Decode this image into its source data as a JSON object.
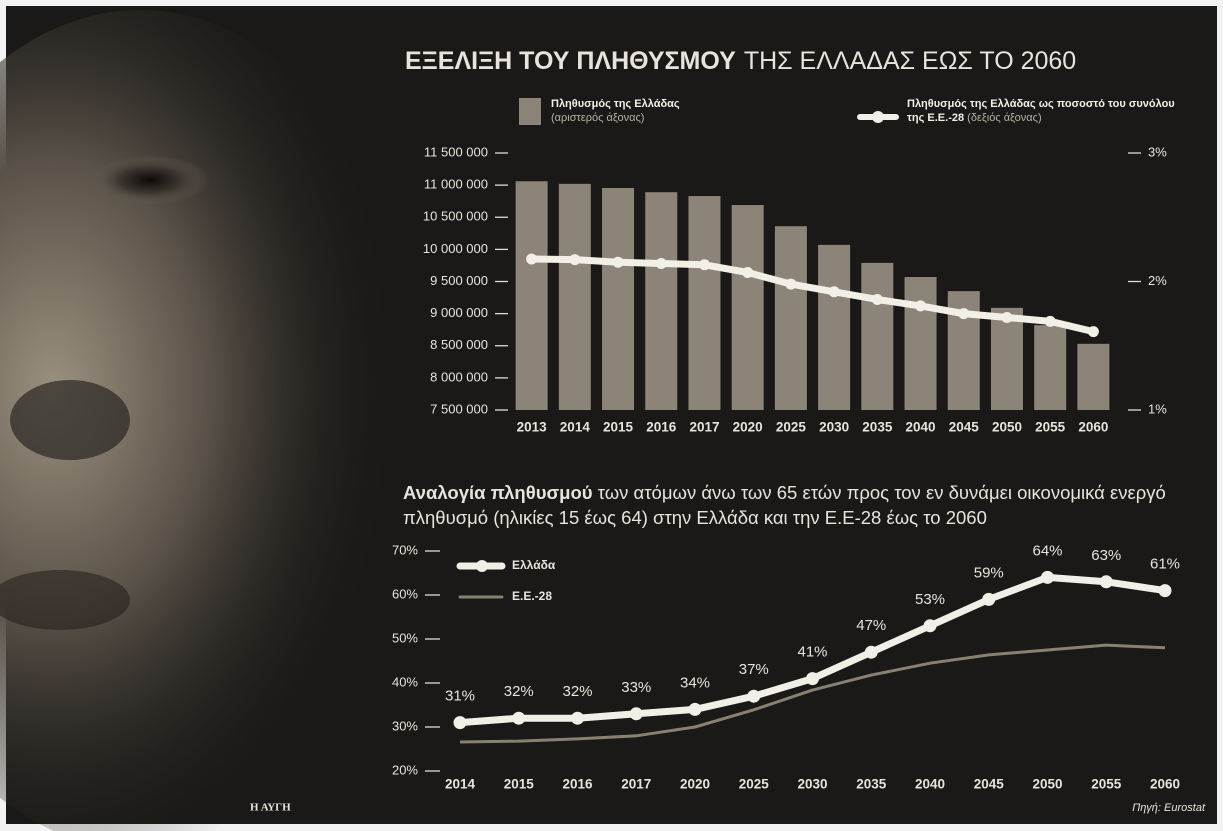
{
  "chart_data": [
    {
      "type": "bar",
      "title": [
        "ΕΞΕΛΙΞΗ ΤΟΥ ΠΛΗΘΥΣΜΟΥ",
        "ΤΗΣ ΕΛΛΑΔΑΣ ΕΩΣ ΤΟ 2060"
      ],
      "categories": [
        "2013",
        "2014",
        "2015",
        "2016",
        "2017",
        "2020",
        "2025",
        "2030",
        "2035",
        "2040",
        "2045",
        "2050",
        "2055",
        "2060"
      ],
      "series": [
        {
          "name": "Πληθυσμός της Ελλάδας",
          "axis_note": "(αριστερός άξονας)",
          "color": "#8c8478",
          "axis": "y",
          "values": [
            11060000,
            11020000,
            10955000,
            10890000,
            10830000,
            10690000,
            10360000,
            10070000,
            9790000,
            9570000,
            9350000,
            9090000,
            8820000,
            8530000
          ]
        },
        {
          "name": "Πληθυσμός της Ελλάδας ως ποσοστό του συνόλου της Ε.Ε.-28",
          "axis_note": "(δεξιός άξονας)",
          "color": "#f2efe6",
          "axis": "y2",
          "values": [
            2.175,
            2.17,
            2.15,
            2.14,
            2.13,
            2.07,
            1.98,
            1.92,
            1.86,
            1.81,
            1.75,
            1.72,
            1.69,
            1.61
          ]
        }
      ],
      "ylim": [
        7500000,
        11500000
      ],
      "yticks": [
        {
          "value": 7500000,
          "label": "7 500 000"
        },
        {
          "value": 8000000,
          "label": "8 000 000"
        },
        {
          "value": 8500000,
          "label": "8 500 000"
        },
        {
          "value": 9000000,
          "label": "9 000 000"
        },
        {
          "value": 9500000,
          "label": "9 500 000"
        },
        {
          "value": 10000000,
          "label": "10 000 000"
        },
        {
          "value": 10500000,
          "label": "10 500 000"
        },
        {
          "value": 11000000,
          "label": "11 000 000"
        },
        {
          "value": 11500000,
          "label": "11 500 000"
        }
      ],
      "y2lim": [
        1,
        3
      ],
      "y2ticks": [
        {
          "value": 1,
          "label": "1%"
        },
        {
          "value": 2,
          "label": "2%"
        },
        {
          "value": 3,
          "label": "3%"
        }
      ]
    },
    {
      "type": "line",
      "title": [
        "Αναλογία πληθυσμού",
        "των ατόμων άνω των 65 ετών προς τον εν δυνάμει οικονομικά ενεργό πληθυσμό (ηλικίες 15 έως 64) στην Ελλάδα και την Ε.Ε-28 έως το 2060"
      ],
      "categories": [
        "2014",
        "2015",
        "2016",
        "2017",
        "2020",
        "2025",
        "2030",
        "2035",
        "2040",
        "2045",
        "2050",
        "2055",
        "2060"
      ],
      "series": [
        {
          "name": "Ελλάδα",
          "color": "#f2efe6",
          "values": [
            31,
            32,
            32,
            33,
            34,
            37,
            41,
            47,
            53,
            59,
            64,
            63,
            61
          ],
          "value_labels": [
            "31%",
            "32%",
            "32%",
            "33%",
            "34%",
            "37%",
            "41%",
            "47%",
            "53%",
            "59%",
            "64%",
            "63%",
            "61%"
          ]
        },
        {
          "name": "Ε.Ε.-28",
          "color": "#8a8070",
          "values": [
            26.6,
            26.8,
            27.3,
            28,
            30,
            33.9,
            38.4,
            41.8,
            44.5,
            46.4,
            47.5,
            48.6,
            48
          ]
        }
      ],
      "ylim": [
        20,
        70
      ],
      "yticks": [
        {
          "value": 20,
          "label": "20%"
        },
        {
          "value": 30,
          "label": "30%"
        },
        {
          "value": 40,
          "label": "40%"
        },
        {
          "value": 50,
          "label": "50%"
        },
        {
          "value": 60,
          "label": "60%"
        },
        {
          "value": 70,
          "label": "70%"
        }
      ]
    }
  ],
  "footer": {
    "publisher": "Η ΑΥΓΗ",
    "source": "Πηγή: Eurostat"
  }
}
